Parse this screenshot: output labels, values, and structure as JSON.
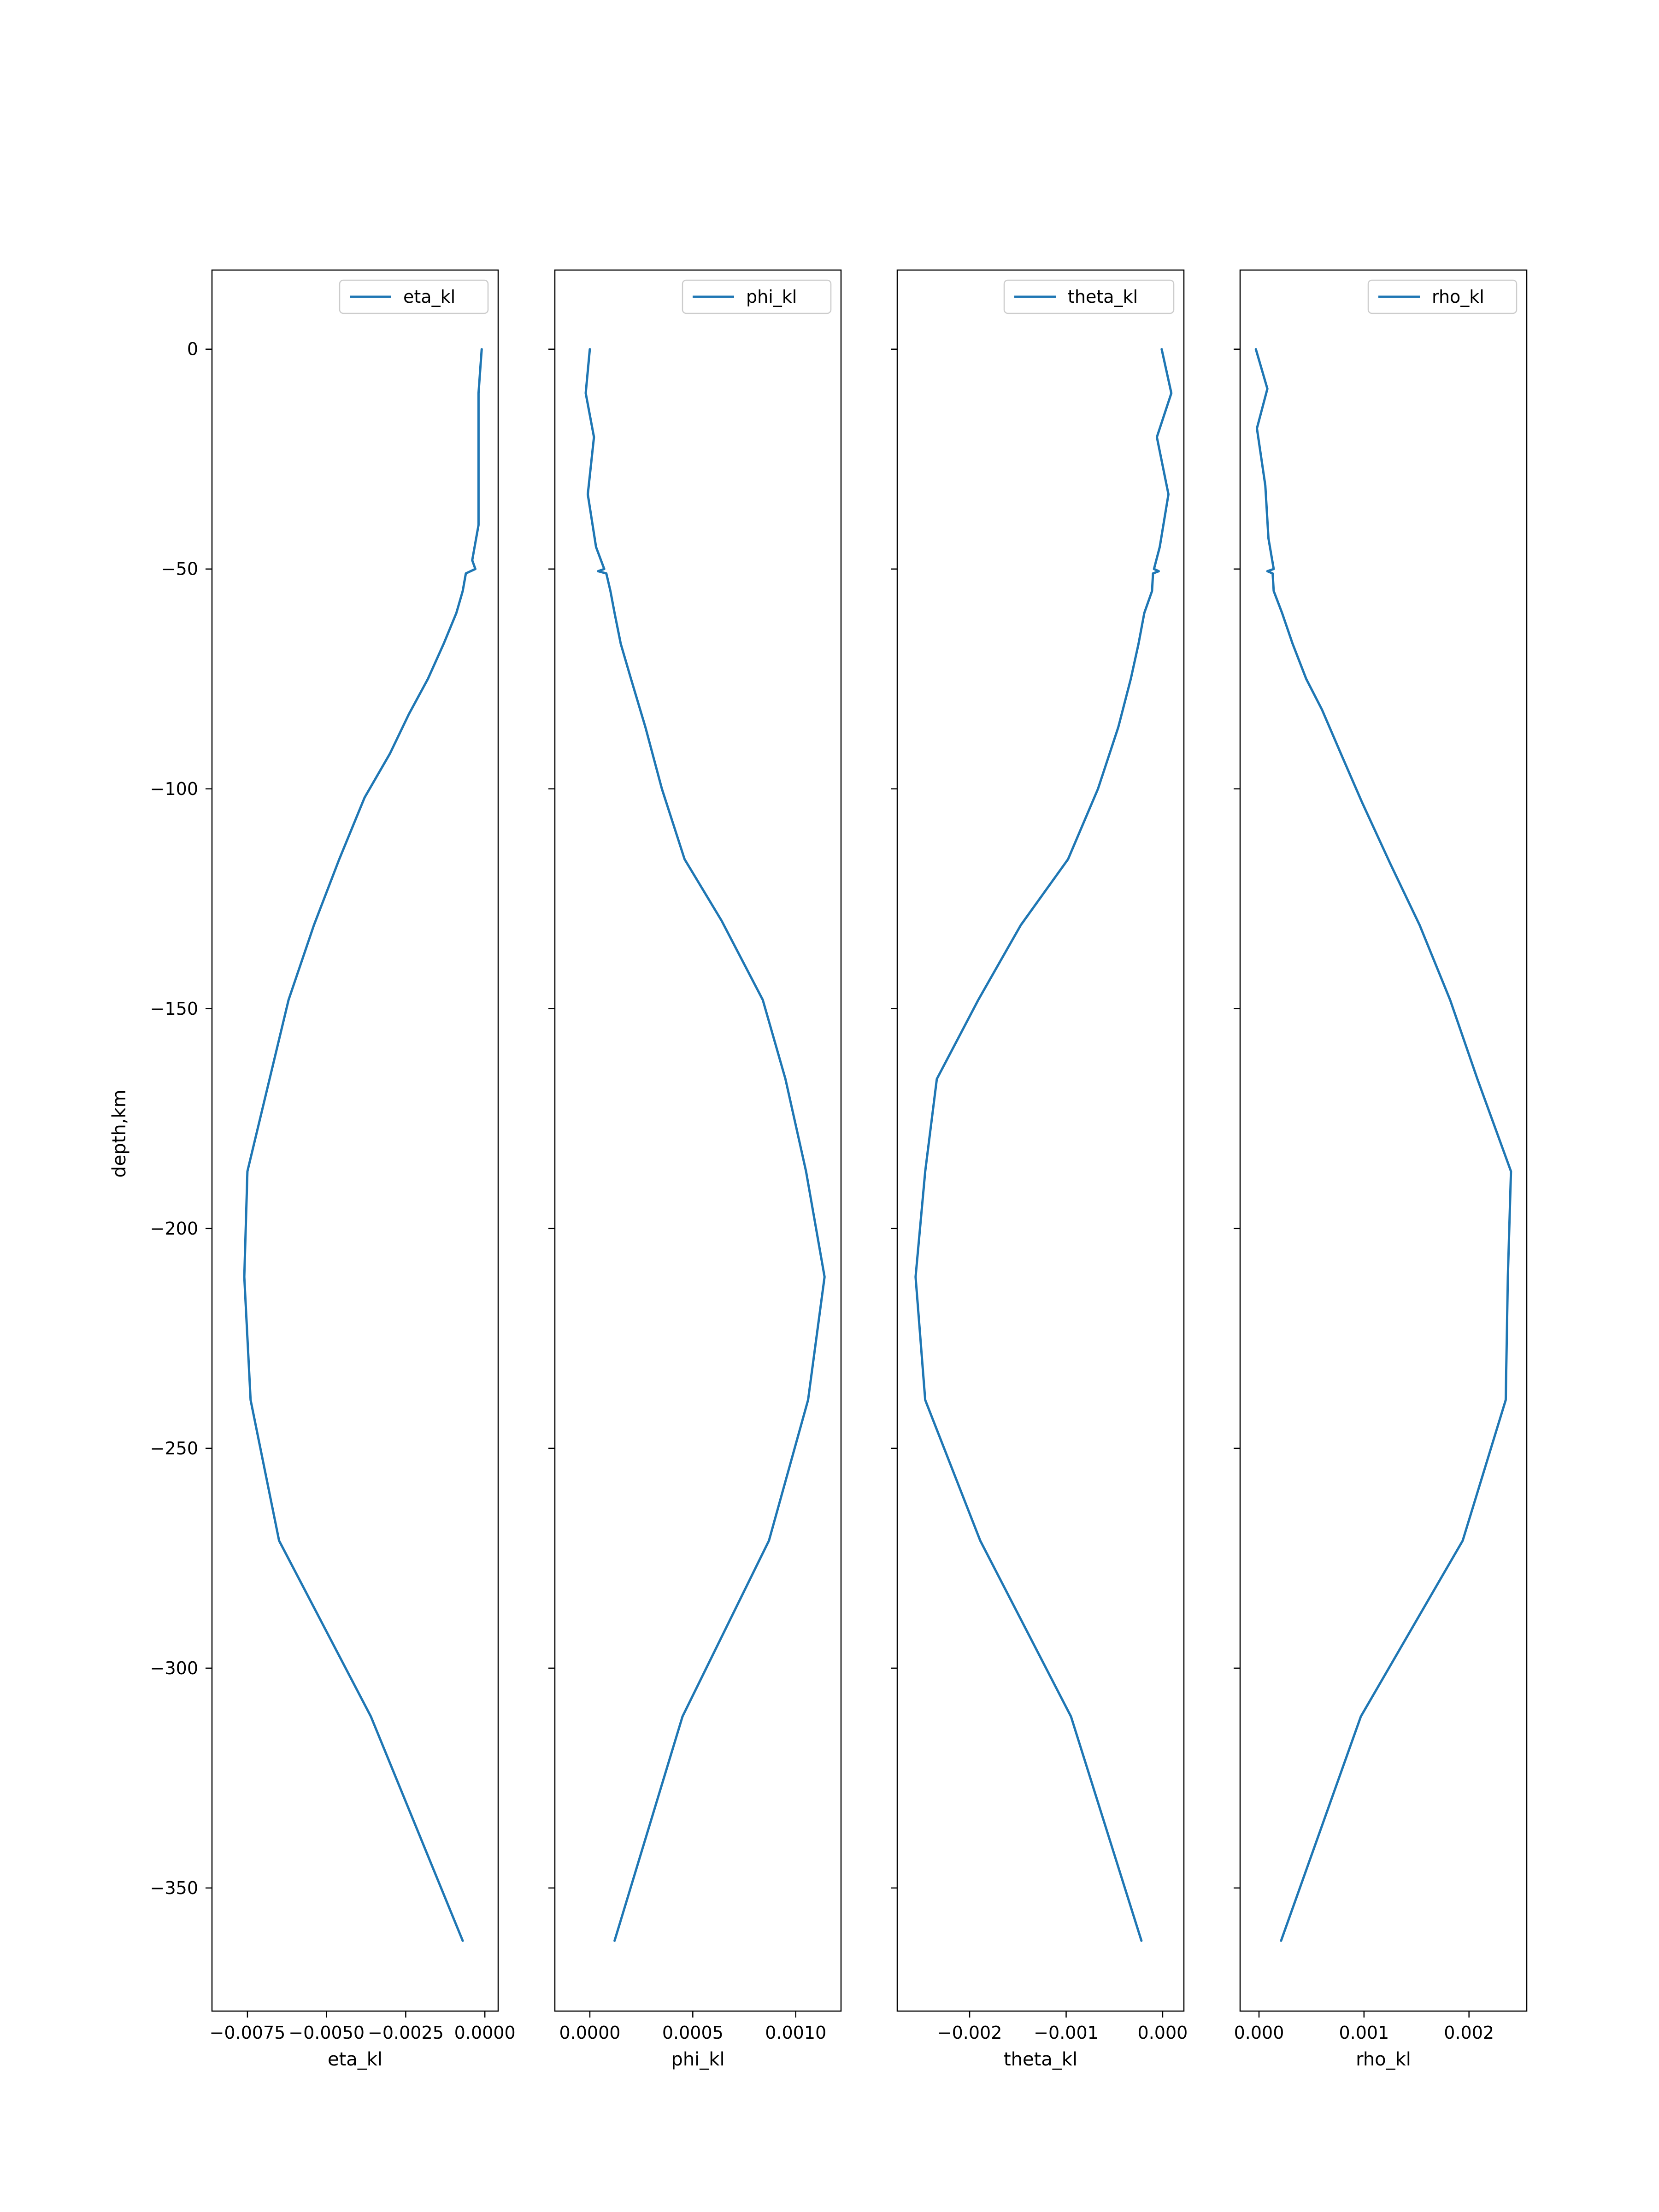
{
  "chart_data": {
    "type": "line",
    "shared_y": {
      "label": "depth,km",
      "lim": [
        -378,
        18
      ],
      "ticks": [
        0,
        -50,
        -100,
        -150,
        -200,
        -250,
        -300,
        -350
      ],
      "tick_labels": [
        "0",
        "−50",
        "−100",
        "−150",
        "−200",
        "−250",
        "−300",
        "−350"
      ]
    },
    "line_color": "#1f77b4",
    "legend_loc": "upper right",
    "grid": false,
    "panels": [
      {
        "xlabel": "eta_kl",
        "series_name": "eta_kl",
        "xlim": [
          -0.00862,
          0.00042
        ],
        "xticks": [
          -0.0075,
          -0.005,
          -0.0025,
          0.0
        ],
        "xtick_labels": [
          "−0.0075",
          "−0.0050",
          "−0.0025",
          "0.0000"
        ],
        "points": [
          [
            -0.0001,
            0
          ],
          [
            -0.0002,
            -10
          ],
          [
            -0.0002,
            -20
          ],
          [
            -0.0002,
            -30
          ],
          [
            -0.0002,
            -40
          ],
          [
            -0.0004,
            -48
          ],
          [
            -0.0003,
            -50
          ],
          [
            -0.0006,
            -51
          ],
          [
            -0.0007,
            -55
          ],
          [
            -0.0009,
            -60
          ],
          [
            -0.0013,
            -67
          ],
          [
            -0.0018,
            -75
          ],
          [
            -0.0024,
            -83
          ],
          [
            -0.003,
            -92
          ],
          [
            -0.0038,
            -102
          ],
          [
            -0.0046,
            -116
          ],
          [
            -0.0054,
            -131
          ],
          [
            -0.0062,
            -148
          ],
          [
            -0.0068,
            -166
          ],
          [
            -0.0075,
            -187
          ],
          [
            -0.0076,
            -211
          ],
          [
            -0.0074,
            -239
          ],
          [
            -0.0065,
            -271
          ],
          [
            -0.0036,
            -311
          ],
          [
            -0.0007,
            -362
          ]
        ]
      },
      {
        "xlabel": "phi_kl",
        "series_name": "phi_kl",
        "xlim": [
          -0.00017,
          0.00122
        ],
        "xticks": [
          0.0,
          0.0005,
          0.001
        ],
        "xtick_labels": [
          "0.0000",
          "0.0005",
          "0.0010"
        ],
        "points": [
          [
            0.0,
            0
          ],
          [
            -2e-05,
            -10
          ],
          [
            2e-05,
            -20
          ],
          [
            -1e-05,
            -33
          ],
          [
            3e-05,
            -45
          ],
          [
            7e-05,
            -50
          ],
          [
            4e-05,
            -50.5
          ],
          [
            8e-05,
            -51
          ],
          [
            0.0001,
            -55
          ],
          [
            0.00012,
            -60
          ],
          [
            0.00015,
            -67
          ],
          [
            0.0002,
            -75
          ],
          [
            0.00027,
            -86
          ],
          [
            0.00035,
            -100
          ],
          [
            0.00046,
            -116
          ],
          [
            0.00064,
            -130
          ],
          [
            0.00084,
            -148
          ],
          [
            0.00095,
            -166
          ],
          [
            0.00105,
            -187
          ],
          [
            0.00114,
            -211
          ],
          [
            0.00106,
            -239
          ],
          [
            0.00087,
            -271
          ],
          [
            0.00045,
            -311
          ],
          [
            0.00012,
            -362
          ]
        ]
      },
      {
        "xlabel": "theta_kl",
        "series_name": "theta_kl",
        "xlim": [
          -0.00275,
          0.00022
        ],
        "xticks": [
          -0.002,
          -0.001,
          0.0
        ],
        "xtick_labels": [
          "−0.002",
          "−0.001",
          "0.000"
        ],
        "points": [
          [
            -1e-05,
            0
          ],
          [
            9e-05,
            -10
          ],
          [
            -6e-05,
            -20
          ],
          [
            6e-05,
            -33
          ],
          [
            -3e-05,
            -45
          ],
          [
            -9e-05,
            -50
          ],
          [
            -4e-05,
            -50.5
          ],
          [
            -0.0001,
            -51
          ],
          [
            -0.00011,
            -55
          ],
          [
            -0.00019,
            -60
          ],
          [
            -0.00025,
            -67
          ],
          [
            -0.00033,
            -75
          ],
          [
            -0.00046,
            -86
          ],
          [
            -0.00067,
            -100
          ],
          [
            -0.00098,
            -116
          ],
          [
            -0.00147,
            -131
          ],
          [
            -0.00191,
            -148
          ],
          [
            -0.00234,
            -166
          ],
          [
            -0.00246,
            -187
          ],
          [
            -0.00256,
            -211
          ],
          [
            -0.00246,
            -239
          ],
          [
            -0.00189,
            -271
          ],
          [
            -0.00095,
            -311
          ],
          [
            -0.00022,
            -362
          ]
        ]
      },
      {
        "xlabel": "rho_kl",
        "series_name": "rho_kl",
        "xlim": [
          -0.00018,
          0.00255
        ],
        "xticks": [
          0.0,
          0.001,
          0.002
        ],
        "xtick_labels": [
          "0.000",
          "0.001",
          "0.002"
        ],
        "points": [
          [
            -3e-05,
            0
          ],
          [
            8e-05,
            -9
          ],
          [
            -2e-05,
            -18
          ],
          [
            6e-05,
            -31
          ],
          [
            9e-05,
            -43
          ],
          [
            0.00014,
            -50
          ],
          [
            8e-05,
            -50.5
          ],
          [
            0.00013,
            -51
          ],
          [
            0.00014,
            -55
          ],
          [
            0.00022,
            -60
          ],
          [
            0.00032,
            -67
          ],
          [
            0.00045,
            -75
          ],
          [
            0.0006,
            -82
          ],
          [
            0.00078,
            -92
          ],
          [
            0.00098,
            -103
          ],
          [
            0.00125,
            -117
          ],
          [
            0.00153,
            -131
          ],
          [
            0.00182,
            -148
          ],
          [
            0.00208,
            -166
          ],
          [
            0.0024,
            -187
          ],
          [
            0.00237,
            -211
          ],
          [
            0.00235,
            -239
          ],
          [
            0.00194,
            -271
          ],
          [
            0.00097,
            -311
          ],
          [
            0.00021,
            -362
          ]
        ]
      }
    ]
  }
}
